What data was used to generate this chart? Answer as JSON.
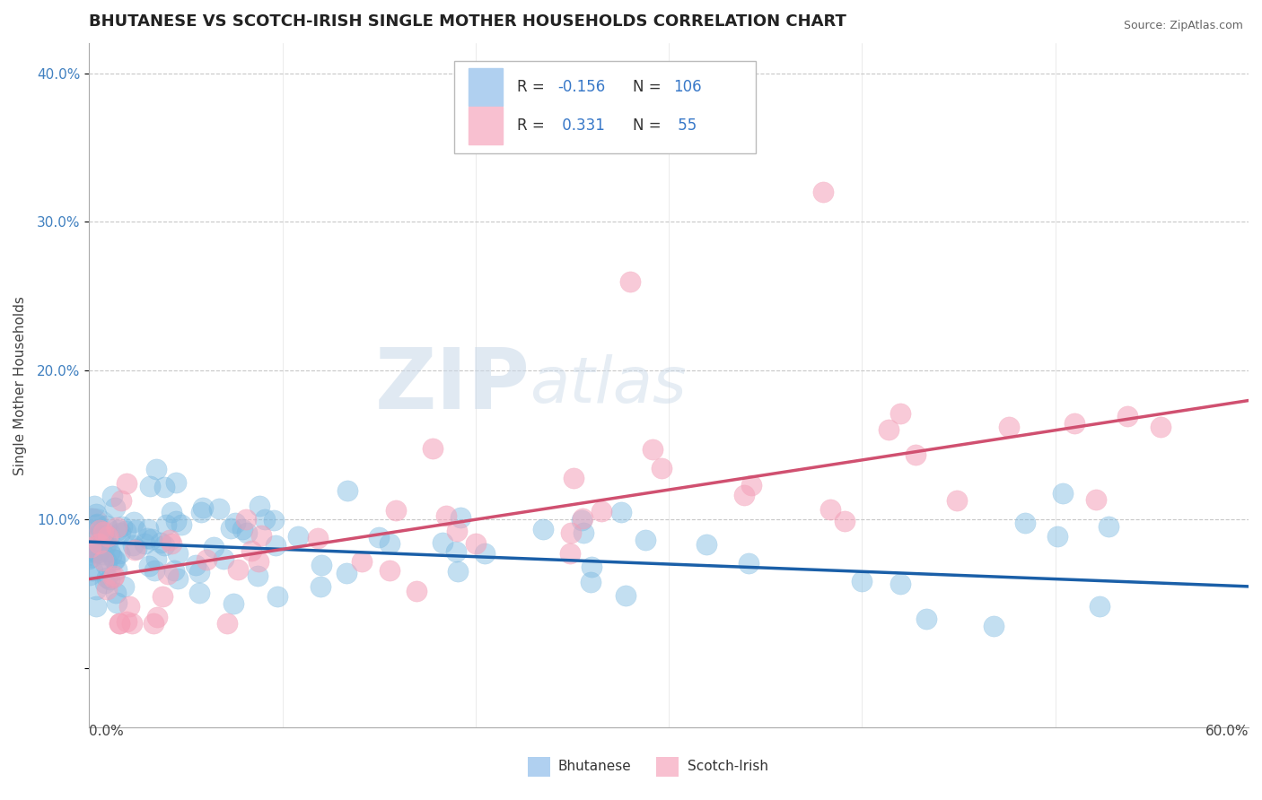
{
  "title": "BHUTANESE VS SCOTCH-IRISH SINGLE MOTHER HOUSEHOLDS CORRELATION CHART",
  "source": "Source: ZipAtlas.com",
  "ylabel": "Single Mother Households",
  "ytick_vals": [
    0.0,
    0.1,
    0.2,
    0.3,
    0.4
  ],
  "ytick_labels": [
    "",
    "10.0%",
    "20.0%",
    "30.0%",
    "40.0%"
  ],
  "xlim": [
    0.0,
    0.6
  ],
  "ylim": [
    -0.04,
    0.42
  ],
  "bhutanese_color": "#7ab8e0",
  "scotchirish_color": "#f4a0b8",
  "bhutanese_line_color": "#1a5fa8",
  "scotchirish_line_color": "#d05070",
  "background_color": "#ffffff",
  "grid_color": "#c8c8c8",
  "tick_color": "#4080c0",
  "title_fontsize": 13,
  "axis_label_fontsize": 11,
  "tick_fontsize": 11,
  "source_fontsize": 9,
  "bhutanese_R": -0.156,
  "bhutanese_N": 106,
  "scotchirish_R": 0.331,
  "scotchirish_N": 55,
  "legend_box_color_blue": "#b0d0f0",
  "legend_box_color_pink": "#f8c0d0",
  "legend_text_dark": "#333333",
  "legend_text_blue": "#3878c8"
}
